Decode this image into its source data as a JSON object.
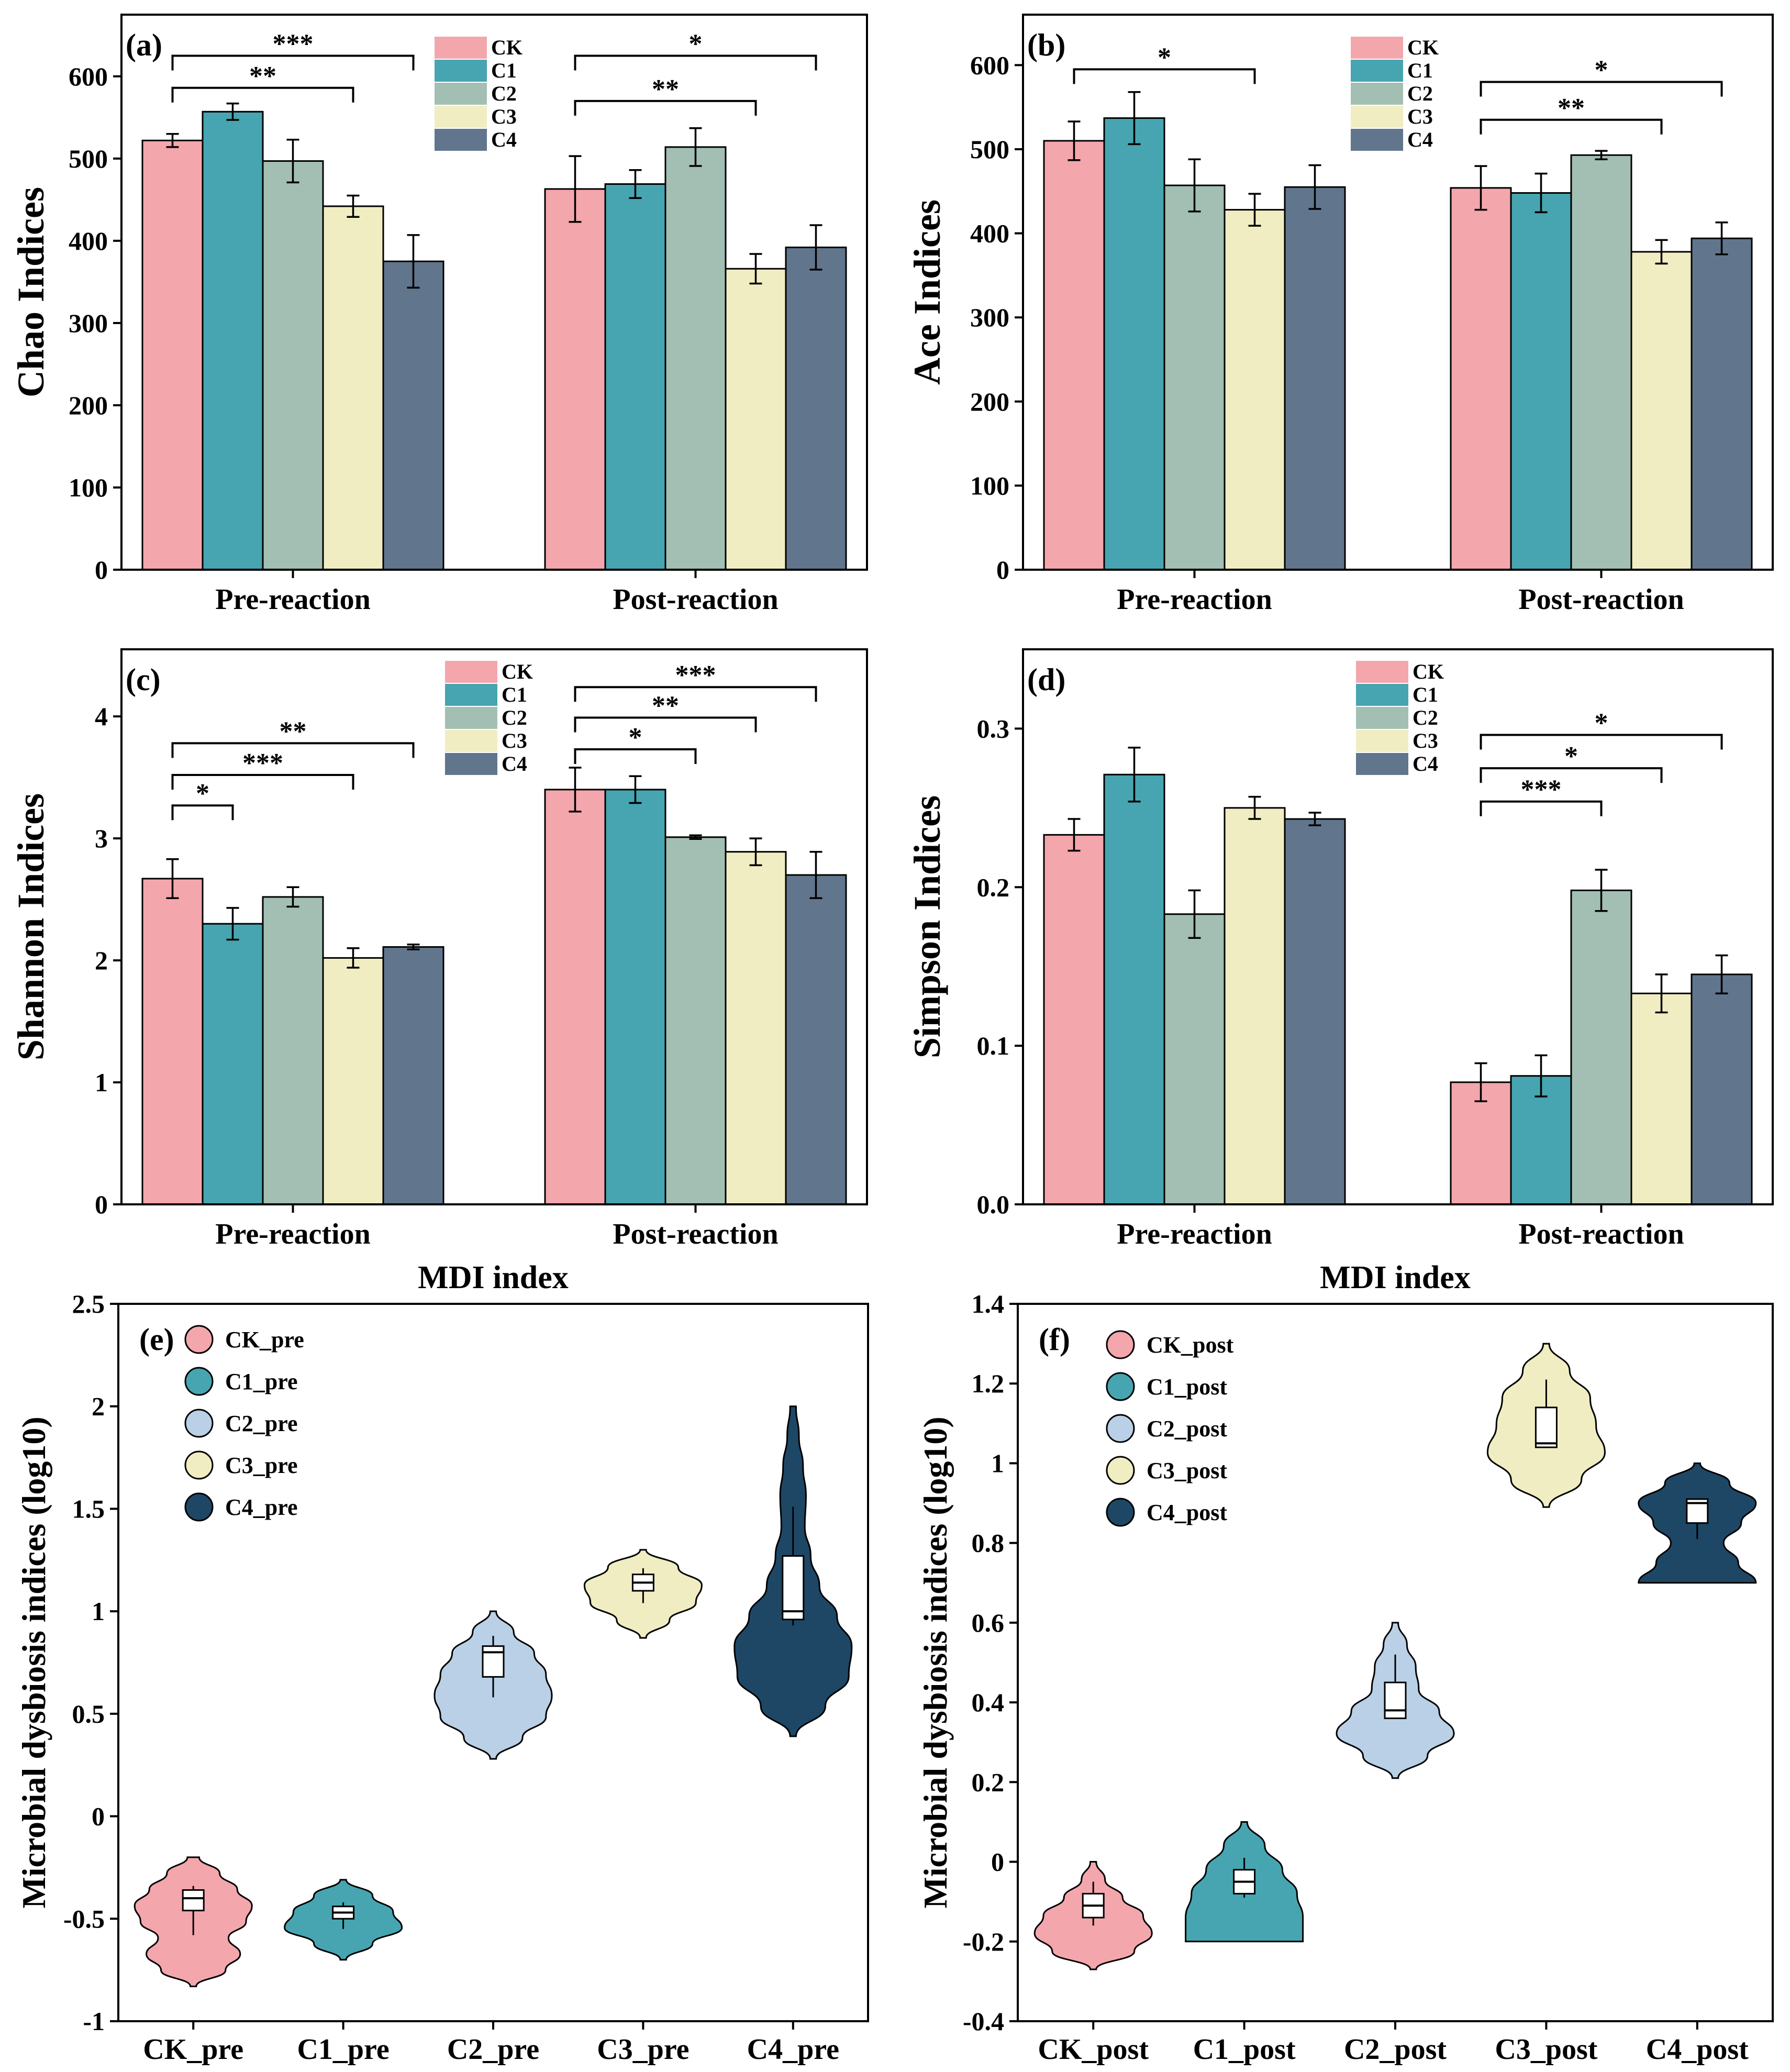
{
  "colors": {
    "CK": "#f4a6ad",
    "C1": "#46a5b0",
    "C2": "#a3bfb4",
    "C3": "#f0edc2",
    "C4": "#61768d",
    "C2_violin": "#b9d0e6",
    "C4_violin": "#1e4766"
  },
  "chart_data": [
    {
      "id": "a",
      "type": "bar",
      "panel_label": "(a)",
      "ylabel": "Chao Indices",
      "ylim": [
        0,
        675
      ],
      "yticks": [
        0,
        100,
        200,
        300,
        400,
        500,
        600
      ],
      "categories": [
        "Pre-reaction",
        "Post-reaction"
      ],
      "series": [
        {
          "name": "CK",
          "values": [
            522,
            463
          ],
          "errors": [
            8,
            40
          ]
        },
        {
          "name": "C1",
          "values": [
            557,
            469
          ],
          "errors": [
            10,
            17
          ]
        },
        {
          "name": "C2",
          "values": [
            497,
            514
          ],
          "errors": [
            26,
            23
          ]
        },
        {
          "name": "C3",
          "values": [
            442,
            366
          ],
          "errors": [
            13,
            18
          ]
        },
        {
          "name": "C4",
          "values": [
            375,
            392
          ],
          "errors": [
            32,
            27
          ]
        }
      ],
      "significance": [
        {
          "group": 0,
          "from": 0,
          "to": 4,
          "y": 625,
          "label": "***"
        },
        {
          "group": 0,
          "from": 0,
          "to": 3,
          "y": 586,
          "label": "**"
        },
        {
          "group": 1,
          "from": 0,
          "to": 4,
          "y": 625,
          "label": "*"
        },
        {
          "group": 1,
          "from": 0,
          "to": 3,
          "y": 570,
          "label": "**"
        }
      ]
    },
    {
      "id": "b",
      "type": "bar",
      "panel_label": "(b)",
      "ylabel": "Ace Indices",
      "ylim": [
        0,
        660
      ],
      "yticks": [
        0,
        100,
        200,
        300,
        400,
        500,
        600
      ],
      "categories": [
        "Pre-reaction",
        "Post-reaction"
      ],
      "series": [
        {
          "name": "CK",
          "values": [
            510,
            454
          ],
          "errors": [
            23,
            26
          ]
        },
        {
          "name": "C1",
          "values": [
            537,
            448
          ],
          "errors": [
            31,
            23
          ]
        },
        {
          "name": "C2",
          "values": [
            457,
            493
          ],
          "errors": [
            31,
            5
          ]
        },
        {
          "name": "C3",
          "values": [
            428,
            378
          ],
          "errors": [
            19,
            14
          ]
        },
        {
          "name": "C4",
          "values": [
            455,
            394
          ],
          "errors": [
            26,
            19
          ]
        }
      ],
      "significance": [
        {
          "group": 0,
          "from": 0,
          "to": 3,
          "y": 595,
          "label": "*"
        },
        {
          "group": 1,
          "from": 0,
          "to": 4,
          "y": 580,
          "label": "*"
        },
        {
          "group": 1,
          "from": 0,
          "to": 3,
          "y": 535,
          "label": "**"
        }
      ]
    },
    {
      "id": "c",
      "type": "bar",
      "panel_label": "(c)",
      "ylabel": "Shannon Indices",
      "ylim": [
        0,
        4.55
      ],
      "yticks": [
        0,
        1,
        2,
        3,
        4
      ],
      "categories": [
        "Pre-reaction",
        "Post-reaction"
      ],
      "series": [
        {
          "name": "CK",
          "values": [
            2.67,
            3.4
          ],
          "errors": [
            0.16,
            0.18
          ]
        },
        {
          "name": "C1",
          "values": [
            2.3,
            3.4
          ],
          "errors": [
            0.13,
            0.11
          ]
        },
        {
          "name": "C2",
          "values": [
            2.52,
            3.01
          ],
          "errors": [
            0.08,
            0.015
          ]
        },
        {
          "name": "C3",
          "values": [
            2.02,
            2.89
          ],
          "errors": [
            0.08,
            0.11
          ]
        },
        {
          "name": "C4",
          "values": [
            2.11,
            2.7
          ],
          "errors": [
            0.02,
            0.19
          ]
        }
      ],
      "significance": [
        {
          "group": 0,
          "from": 0,
          "to": 4,
          "y": 3.78,
          "label": "**"
        },
        {
          "group": 0,
          "from": 0,
          "to": 3,
          "y": 3.52,
          "label": "***"
        },
        {
          "group": 0,
          "from": 0,
          "to": 1,
          "y": 3.27,
          "label": "*"
        },
        {
          "group": 1,
          "from": 0,
          "to": 4,
          "y": 4.24,
          "label": "***"
        },
        {
          "group": 1,
          "from": 0,
          "to": 3,
          "y": 3.99,
          "label": "**"
        },
        {
          "group": 1,
          "from": 0,
          "to": 2,
          "y": 3.73,
          "label": "*"
        }
      ]
    },
    {
      "id": "d",
      "type": "bar",
      "panel_label": "(d)",
      "ylabel": "Simpson Indices",
      "ylim": [
        0,
        0.35
      ],
      "yticks": [
        0.0,
        0.1,
        0.2,
        0.3
      ],
      "categories": [
        "Pre-reaction",
        "Post-reaction"
      ],
      "series": [
        {
          "name": "CK",
          "values": [
            0.233,
            0.077
          ],
          "errors": [
            0.01,
            0.012
          ]
        },
        {
          "name": "C1",
          "values": [
            0.271,
            0.081
          ],
          "errors": [
            0.017,
            0.013
          ]
        },
        {
          "name": "C2",
          "values": [
            0.183,
            0.198
          ],
          "errors": [
            0.015,
            0.013
          ]
        },
        {
          "name": "C3",
          "values": [
            0.25,
            0.133
          ],
          "errors": [
            0.007,
            0.012
          ]
        },
        {
          "name": "C4",
          "values": [
            0.243,
            0.145
          ],
          "errors": [
            0.004,
            0.012
          ]
        }
      ],
      "significance": [
        {
          "group": 1,
          "from": 0,
          "to": 4,
          "y": 0.296,
          "label": "*"
        },
        {
          "group": 1,
          "from": 0,
          "to": 3,
          "y": 0.275,
          "label": "*"
        },
        {
          "group": 1,
          "from": 0,
          "to": 2,
          "y": 0.254,
          "label": "***"
        }
      ]
    },
    {
      "id": "e",
      "type": "violin",
      "panel_label": "(e)",
      "title": "MDI index",
      "ylabel": "Microbial dysbiosis indices (log10)",
      "ylim": [
        -1,
        2.5
      ],
      "yticks": [
        -1,
        -0.5,
        0,
        0.5,
        1,
        1.5,
        2,
        2.5
      ],
      "ytick_labels": [
        "-1",
        "-0.5",
        "0",
        "0.5",
        "1",
        "1.5",
        "2",
        "2.5"
      ],
      "categories": [
        "CK_pre",
        "C1_pre",
        "C2_pre",
        "C3_pre",
        "C4_pre"
      ],
      "legend": [
        "CK_pre",
        "C1_pre",
        "C2_pre",
        "C3_pre",
        "C4_pre"
      ],
      "groups": [
        {
          "name": "CK_pre",
          "color_key": "CK",
          "min": -0.83,
          "max": -0.2,
          "widths": [
            0.05,
            0.55,
            0.8,
            0.6,
            0.9,
            1.0,
            0.75,
            0.45,
            0.1
          ],
          "box": {
            "lower": -0.48,
            "q1": -0.46,
            "median": -0.4,
            "q3": -0.36,
            "upper": -0.34,
            "whisker_low": -0.58,
            "whisker_high": -0.34
          }
        },
        {
          "name": "C1_pre",
          "color_key": "C1",
          "min": -0.7,
          "max": -0.31,
          "widths": [
            0.05,
            0.5,
            1.0,
            0.85,
            0.5,
            0.05
          ],
          "box": {
            "q1": -0.5,
            "median": -0.47,
            "q3": -0.44,
            "whisker_low": -0.55,
            "whisker_high": -0.42
          }
        },
        {
          "name": "C2_pre",
          "color_key": "C2_violin",
          "min": 0.28,
          "max": 1.0,
          "widths": [
            0.05,
            0.5,
            0.9,
            1.0,
            0.9,
            0.7,
            0.35,
            0.05
          ],
          "box": {
            "q1": 0.68,
            "median": 0.8,
            "q3": 0.83,
            "whisker_low": 0.58,
            "whisker_high": 0.88
          }
        },
        {
          "name": "C3_pre",
          "color_key": "C3",
          "min": 0.87,
          "max": 1.3,
          "widths": [
            0.05,
            0.45,
            0.9,
            1.0,
            0.6,
            0.05
          ],
          "box": {
            "q1": 1.1,
            "median": 1.14,
            "q3": 1.18,
            "whisker_low": 1.04,
            "whisker_high": 1.21
          }
        },
        {
          "name": "C4_pre",
          "color_key": "C4_violin",
          "min": 0.39,
          "max": 2.0,
          "widths": [
            0.05,
            0.55,
            0.95,
            1.0,
            0.75,
            0.45,
            0.3,
            0.2,
            0.22,
            0.17,
            0.1,
            0.05
          ],
          "box": {
            "q1": 0.96,
            "median": 1.0,
            "q3": 1.27,
            "whisker_low": 0.93,
            "whisker_high": 1.51
          }
        }
      ]
    },
    {
      "id": "f",
      "type": "violin",
      "panel_label": "(f)",
      "title": "MDI index",
      "ylabel": "Microbial dysbiosis indices (log10)",
      "ylim": [
        -0.4,
        1.4
      ],
      "yticks": [
        -0.4,
        -0.2,
        0,
        0.2,
        0.4,
        0.6,
        0.8,
        1.0,
        1.2,
        1.4
      ],
      "ytick_labels": [
        "-0.4",
        "-0.2",
        "0",
        "0.2",
        "0.4",
        "0.6",
        "0.8",
        "1",
        "1.2",
        "1.4"
      ],
      "categories": [
        "CK_post",
        "C1_post",
        "C2_post",
        "C3_post",
        "C4_post"
      ],
      "legend": [
        "CK_post",
        "C1_post",
        "C2_post",
        "C3_post",
        "C4_post"
      ],
      "groups": [
        {
          "name": "CK_post",
          "color_key": "CK",
          "min": -0.27,
          "max": 0.0,
          "widths": [
            0.05,
            0.7,
            1.0,
            0.85,
            0.5,
            0.2,
            0.05
          ],
          "box": {
            "q1": -0.14,
            "median": -0.11,
            "q3": -0.08,
            "whisker_low": -0.16,
            "whisker_high": -0.05
          }
        },
        {
          "name": "C1_post",
          "color_key": "C1",
          "min": -0.2,
          "max": 0.1,
          "widths": [
            1.0,
            1.0,
            0.9,
            0.65,
            0.35,
            0.05
          ],
          "box": {
            "q1": -0.08,
            "median": -0.05,
            "q3": -0.02,
            "whisker_low": -0.09,
            "whisker_high": 0.01
          }
        },
        {
          "name": "C2_post",
          "color_key": "C2_violin",
          "min": 0.21,
          "max": 0.6,
          "widths": [
            0.05,
            0.55,
            1.0,
            0.75,
            0.4,
            0.35,
            0.2,
            0.05
          ],
          "box": {
            "q1": 0.36,
            "median": 0.38,
            "q3": 0.45,
            "whisker_low": 0.36,
            "whisker_high": 0.52
          }
        },
        {
          "name": "C3_post",
          "color_key": "C3",
          "min": 0.89,
          "max": 1.3,
          "widths": [
            0.05,
            0.6,
            1.0,
            0.85,
            0.75,
            0.4,
            0.05
          ],
          "box": {
            "q1": 1.04,
            "median": 1.05,
            "q3": 1.14,
            "whisker_low": 1.04,
            "whisker_high": 1.21
          }
        },
        {
          "name": "C4_post",
          "color_key": "C4_violin",
          "min": 0.7,
          "max": 1.0,
          "widths": [
            1.0,
            0.7,
            0.45,
            0.75,
            1.0,
            0.55,
            0.05
          ],
          "box": {
            "q1": 0.85,
            "median": 0.9,
            "q3": 0.91,
            "whisker_low": 0.81,
            "whisker_high": 0.91
          }
        }
      ]
    }
  ]
}
